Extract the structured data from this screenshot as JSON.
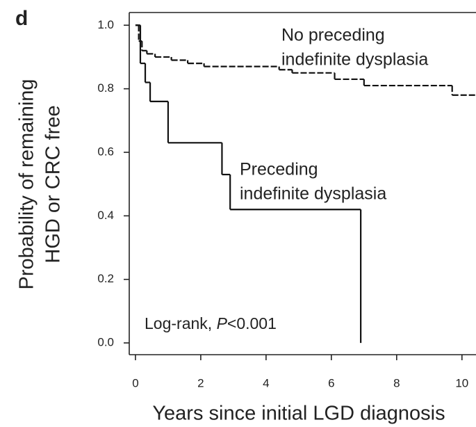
{
  "chart_data": {
    "type": "step",
    "panel": "d",
    "xlabel": "Years since initial LGD diagnosis",
    "ylabel": [
      "Probability of remaining",
      "HGD or CRC free"
    ],
    "xlim": [
      -0.19,
      10.43
    ],
    "ylim": [
      -0.037,
      1.04
    ],
    "xticks": [
      0,
      2,
      4,
      6,
      8,
      10
    ],
    "yticks": [
      {
        "value": 0,
        "label": "0.0"
      },
      0.2,
      0.4,
      0.6,
      0.8,
      {
        "value": 1,
        "label": "1.0"
      }
    ],
    "series": [
      {
        "name": [
          "No preceding",
          "indefinite dysplasia"
        ],
        "dashed": true,
        "color": "#111111",
        "x": [
          0,
          0.1,
          0.2,
          0.35,
          0.6,
          1.1,
          1.6,
          2.1,
          4.4,
          4.8,
          6.1,
          7.0,
          9.7,
          10.43
        ],
        "values": [
          1.0,
          0.95,
          0.92,
          0.91,
          0.9,
          0.89,
          0.88,
          0.87,
          0.86,
          0.85,
          0.83,
          0.81,
          0.78,
          0.78
        ]
      },
      {
        "name": [
          "Preceding",
          "indefinite dysplasia"
        ],
        "dashed": false,
        "color": "#111111",
        "x": [
          0,
          0.15,
          0.3,
          0.45,
          1.0,
          2.65,
          2.9,
          6.9
        ],
        "values": [
          1.0,
          0.88,
          0.82,
          0.76,
          0.63,
          0.53,
          0.42,
          0.0
        ]
      }
    ],
    "annotation": [
      "Log-rank, ",
      "P",
      "<0.001"
    ]
  }
}
